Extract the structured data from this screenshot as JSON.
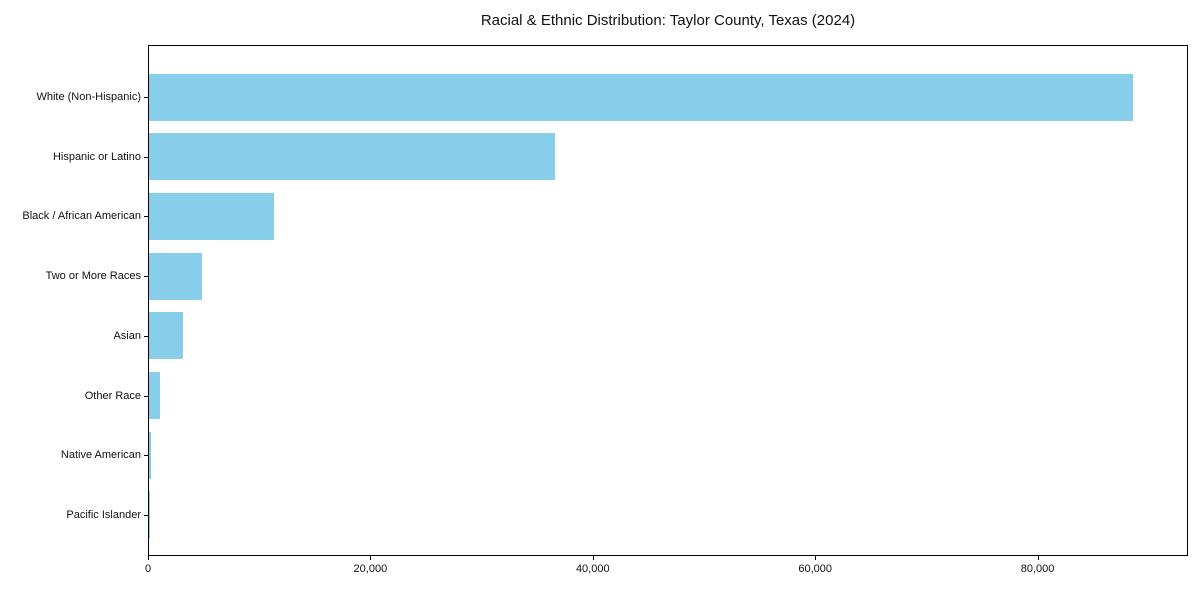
{
  "title": "Racial & Ethnic Distribution: Taylor County, Texas (2024)",
  "chart_data": {
    "type": "bar",
    "orientation": "horizontal",
    "title": "Racial & Ethnic Distribution: Taylor County, Texas (2024)",
    "xlabel": "",
    "ylabel": "",
    "categories": [
      "White (Non-Hispanic)",
      "Hispanic or Latino",
      "Black / African American",
      "Two or More Races",
      "Asian",
      "Other Race",
      "Native American",
      "Pacific Islander"
    ],
    "values": [
      88500,
      36500,
      11200,
      4750,
      3100,
      1000,
      150,
      80
    ],
    "xlim": [
      0,
      93350
    ],
    "xticks": [
      0,
      20000,
      40000,
      60000,
      80000
    ],
    "xtick_labels": [
      "0",
      "20,000",
      "40,000",
      "60,000",
      "80,000"
    ],
    "bar_color": "#87CEEB",
    "grid": false,
    "legend": null
  }
}
